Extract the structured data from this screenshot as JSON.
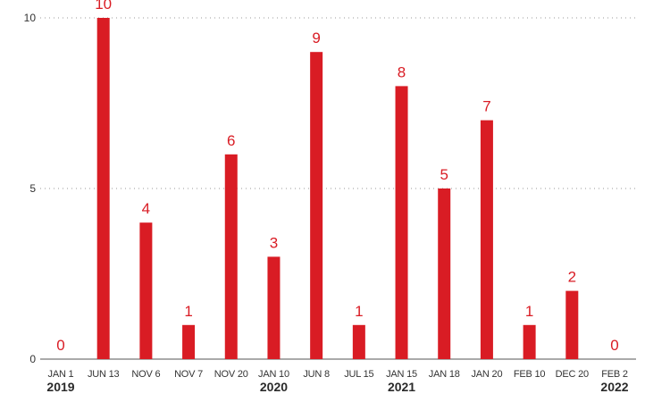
{
  "colors": {
    "bar": "#d91c24",
    "value_label": "#d91c24",
    "grid": "#9a9a9a",
    "text": "#333333"
  },
  "chart_data": {
    "type": "bar",
    "title": "",
    "xlabel": "",
    "ylabel": "",
    "ylim": [
      0,
      10
    ],
    "yticks": [
      0,
      5,
      10
    ],
    "grid": "horizontal dotted at y ticks",
    "legend": "none",
    "categories": [
      "JAN 1",
      "JUN 13",
      "NOV 6",
      "NOV 7",
      "NOV 20",
      "JAN 10",
      "JUN 8",
      "JUL 15",
      "JAN 15",
      "JAN 18",
      "JAN 20",
      "FEB 10",
      "DEC 20",
      "FEB 2"
    ],
    "values": [
      0,
      10,
      4,
      1,
      6,
      3,
      9,
      1,
      8,
      5,
      7,
      1,
      2,
      0
    ],
    "data_labels": [
      "0",
      "10",
      "4",
      "1",
      "6",
      "3",
      "9",
      "1",
      "8",
      "5",
      "7",
      "1",
      "2",
      "0"
    ],
    "year_labels": [
      {
        "category": "JAN 1",
        "text": "2019"
      },
      {
        "category": "JAN 10",
        "text": "2020"
      },
      {
        "category": "JAN 15",
        "text": "2021"
      },
      {
        "category": "FEB 2",
        "text": "2022"
      }
    ]
  }
}
